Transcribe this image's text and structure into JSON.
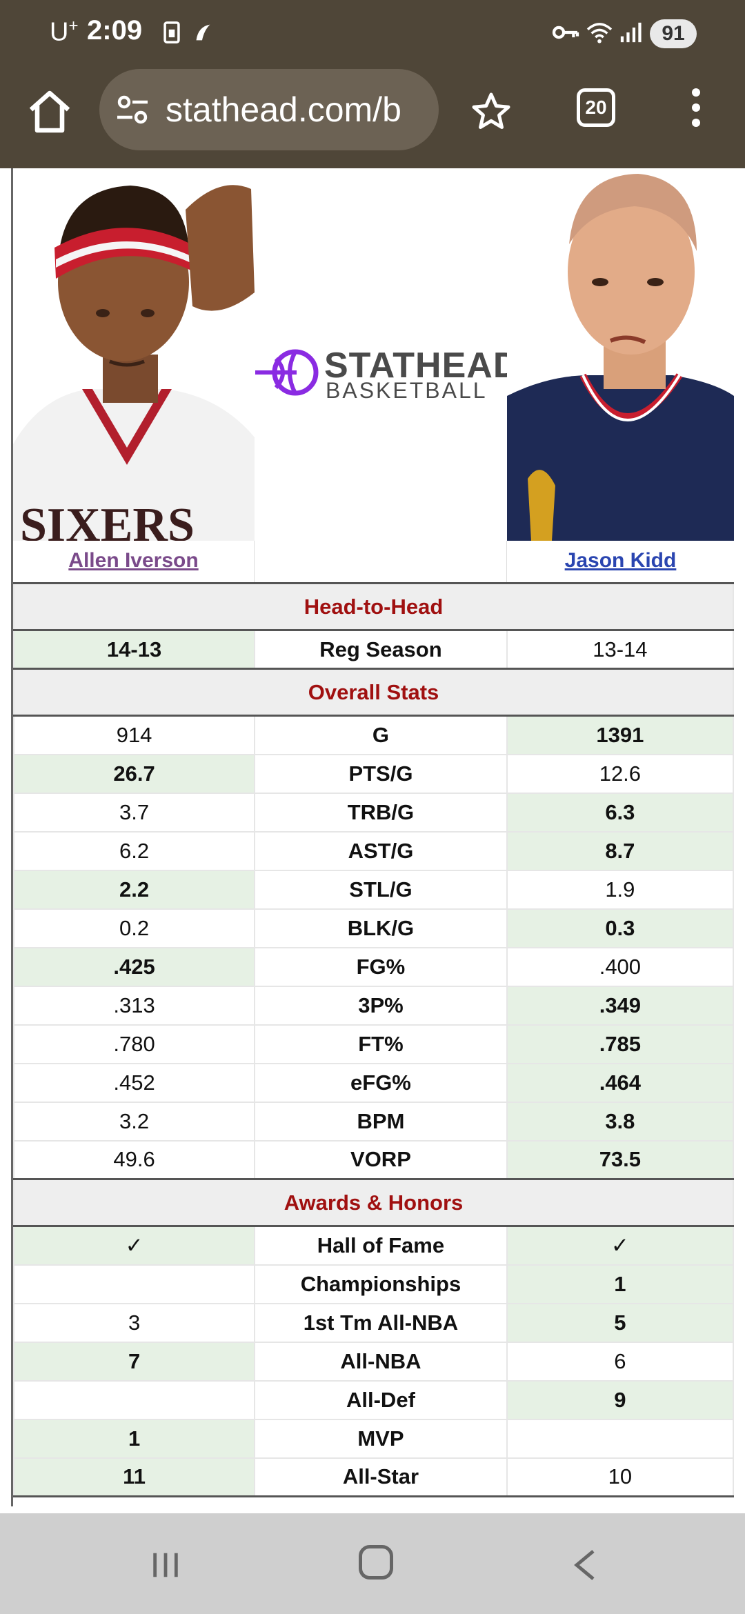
{
  "status_bar": {
    "carrier": "U",
    "carrier_sup": "+",
    "time": "2:09",
    "battery": "91"
  },
  "browser": {
    "url": "stathead.com/b",
    "tab_count": "20"
  },
  "logo": {
    "line1": "STATHEAD",
    "line2": "BASKETBALL"
  },
  "players": {
    "left": "Allen Iverson",
    "right": "Jason Kidd"
  },
  "sections": {
    "head_to_head": "Head-to-Head",
    "overall": "Overall Stats",
    "awards": "Awards & Honors"
  },
  "head_to_head": [
    {
      "stat": "Reg Season",
      "left": "14-13",
      "right": "13-14",
      "win": "left"
    }
  ],
  "overall": [
    {
      "stat": "G",
      "left": "914",
      "right": "1391",
      "win": "right"
    },
    {
      "stat": "PTS/G",
      "left": "26.7",
      "right": "12.6",
      "win": "left"
    },
    {
      "stat": "TRB/G",
      "left": "3.7",
      "right": "6.3",
      "win": "right"
    },
    {
      "stat": "AST/G",
      "left": "6.2",
      "right": "8.7",
      "win": "right"
    },
    {
      "stat": "STL/G",
      "left": "2.2",
      "right": "1.9",
      "win": "left"
    },
    {
      "stat": "BLK/G",
      "left": "0.2",
      "right": "0.3",
      "win": "right"
    },
    {
      "stat": "FG%",
      "left": ".425",
      "right": ".400",
      "win": "left"
    },
    {
      "stat": "3P%",
      "left": ".313",
      "right": ".349",
      "win": "right"
    },
    {
      "stat": "FT%",
      "left": ".780",
      "right": ".785",
      "win": "right"
    },
    {
      "stat": "eFG%",
      "left": ".452",
      "right": ".464",
      "win": "right"
    },
    {
      "stat": "BPM",
      "left": "3.2",
      "right": "3.8",
      "win": "right"
    },
    {
      "stat": "VORP",
      "left": "49.6",
      "right": "73.5",
      "win": "right"
    }
  ],
  "awards": [
    {
      "stat": "Hall of Fame",
      "left": "✓",
      "right": "✓",
      "win": "both"
    },
    {
      "stat": "Championships",
      "left": "",
      "right": "1",
      "win": "right"
    },
    {
      "stat": "1st Tm All-NBA",
      "left": "3",
      "right": "5",
      "win": "right"
    },
    {
      "stat": "All-NBA",
      "left": "7",
      "right": "6",
      "win": "left"
    },
    {
      "stat": "All-Def",
      "left": "",
      "right": "9",
      "win": "right"
    },
    {
      "stat": "MVP",
      "left": "1",
      "right": "",
      "win": "left"
    },
    {
      "stat": "All-Star",
      "left": "11",
      "right": "10",
      "win": "left"
    }
  ],
  "colors": {
    "chrome": "#4f4638",
    "section_text": "#a01010",
    "winner_bg": "#e6f1e4",
    "logo_purple": "#8a2be2"
  }
}
